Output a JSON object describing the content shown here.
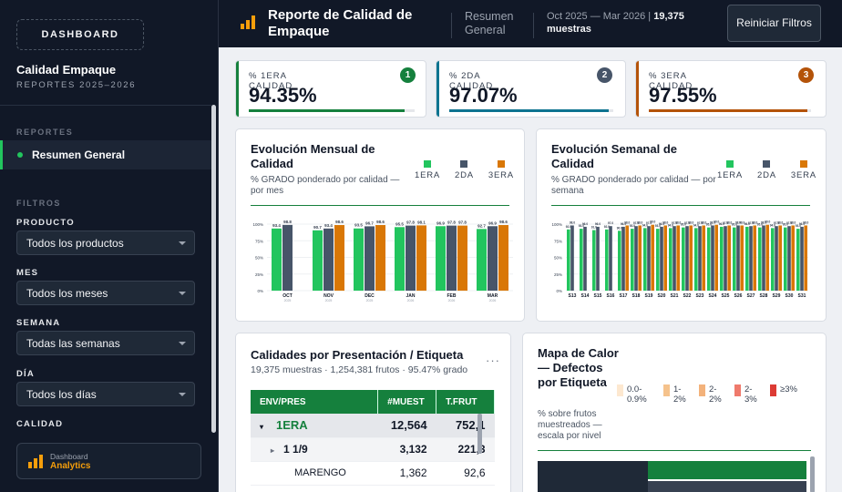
{
  "sidebar": {
    "logo_button": "DASHBOARD",
    "title": "Calidad Empaque",
    "subtitle": "REPORTES 2025–2026",
    "section_reports": "REPORTES",
    "nav_item": "Resumen General",
    "section_filters": "FILTROS",
    "filters": [
      {
        "label": "PRODUCTO",
        "value": "Todos los productos"
      },
      {
        "label": "MES",
        "value": "Todos los meses"
      },
      {
        "label": "SEMANA",
        "value": "Todas las semanas"
      },
      {
        "label": "DÍA",
        "value": "Todos los días"
      }
    ],
    "filter_calidad_label": "CALIDAD",
    "brand_line1": "Dashboard",
    "brand_line2": "Analytics"
  },
  "header": {
    "title": "Reporte de Calidad de Empaque",
    "tab": "Resumen General",
    "range": "Oct 2025 — Mar 2026",
    "count": "19,375",
    "count_label": "muestras",
    "reset_button": "Reiniciar Filtros"
  },
  "kpis": [
    {
      "label": "% 1ERA CALIDAD",
      "value": "94.35%",
      "badge": "1",
      "color": "#15803d",
      "fill": 0.94
    },
    {
      "label": "% 2DA CALIDAD",
      "value": "97.07%",
      "badge": "2",
      "color": "#475569",
      "fill": 0.97
    },
    {
      "label": "% 3ERA CALIDAD",
      "value": "97.55%",
      "badge": "3",
      "color": "#b45309",
      "fill": 0.98
    }
  ],
  "colors": {
    "first": "#22c55e",
    "second": "#475569",
    "third": "#d97706"
  },
  "legend": [
    "1ERA",
    "2DA",
    "3ERA"
  ],
  "monthly": {
    "title": "Evolución Mensual de Calidad",
    "subtitle": "% GRADO ponderado por calidad — por mes",
    "chart_data": {
      "type": "bar",
      "categories": [
        "OCT",
        "NOV",
        "DEC",
        "JAN",
        "FEB",
        "MAR"
      ],
      "category_sub": [
        "2025",
        "2025",
        "2025",
        "2026",
        "2026",
        "2026"
      ],
      "ylim": [
        0,
        100
      ],
      "yticks": [
        "0%",
        "25%",
        "50%",
        "75%",
        "100%"
      ],
      "series": [
        {
          "name": "1ERA",
          "values": [
            93.4,
            90.7,
            93.5,
            95.5,
            96.9,
            92.7
          ]
        },
        {
          "name": "2DA",
          "values": [
            98.8,
            93.4,
            96.7,
            97.8,
            97.8,
            96.9
          ]
        },
        {
          "name": "3ERA",
          "values": [
            null,
            98.6,
            98.6,
            98.1,
            97.8,
            98.6
          ]
        }
      ]
    }
  },
  "weekly": {
    "title": "Evolución Semanal de Calidad",
    "subtitle": "% GRADO ponderado por calidad — por semana",
    "chart_data": {
      "type": "bar",
      "categories": [
        "S13",
        "S14",
        "S15",
        "S16",
        "S17",
        "S18",
        "S19",
        "S20",
        "S21",
        "S22",
        "S23",
        "S24",
        "S25",
        "S26",
        "S27",
        "S28",
        "S29",
        "S30",
        "S31"
      ],
      "ylim": [
        0,
        100
      ],
      "yticks": [
        "0%",
        "25%",
        "50%",
        "75%",
        "100%"
      ],
      "series": [
        {
          "name": "1ERA",
          "values": [
            92,
            93,
            91,
            92,
            90,
            93,
            94,
            93,
            94,
            95,
            94,
            95,
            96,
            95,
            96,
            95,
            94,
            95,
            93
          ]
        },
        {
          "name": "2DA",
          "values": [
            98,
            96,
            96,
            97,
            96,
            97,
            97,
            96,
            97,
            97,
            97,
            98,
            97,
            98,
            97,
            98,
            97,
            97,
            96
          ]
        },
        {
          "name": "3ERA",
          "values": [
            null,
            null,
            null,
            null,
            98,
            98,
            99,
            98,
            98,
            98,
            98,
            99,
            98,
            98,
            98,
            99,
            98,
            98,
            98
          ]
        }
      ]
    }
  },
  "table": {
    "title": "Calidades por Presentación / Etiqueta",
    "subtitle": "19,375 muestras · 1,254,381 frutos · 95.47% grado",
    "menu": "···",
    "headers": [
      "ENV/PRES",
      "#MUEST",
      "T.FRUT"
    ],
    "rows": [
      {
        "level": "l1",
        "marker": "▾",
        "name": "1ERA",
        "muest": "12,564",
        "frut": "752,1"
      },
      {
        "level": "l2",
        "marker": "▸",
        "name": "1 1/9",
        "muest": "3,132",
        "frut": "221,3"
      },
      {
        "level": "l3",
        "marker": "",
        "name": "MARENGO",
        "muest": "1,362",
        "frut": "92,6"
      }
    ]
  },
  "heatmap": {
    "title": "Mapa de Calor — Defectos por Etiqueta",
    "subtitle": "% sobre frutos muestreados — escala por nivel",
    "legend": [
      {
        "label": "0.0-0.9%",
        "color": "#fde8d0"
      },
      {
        "label": "1-2%",
        "color": "#f5c28c"
      },
      {
        "label": "2-2%",
        "color": "#f3b27b"
      },
      {
        "label": "2-3%",
        "color": "#ef7a6c"
      },
      {
        "label": "≥3%",
        "color": "#dc3b34"
      }
    ]
  }
}
